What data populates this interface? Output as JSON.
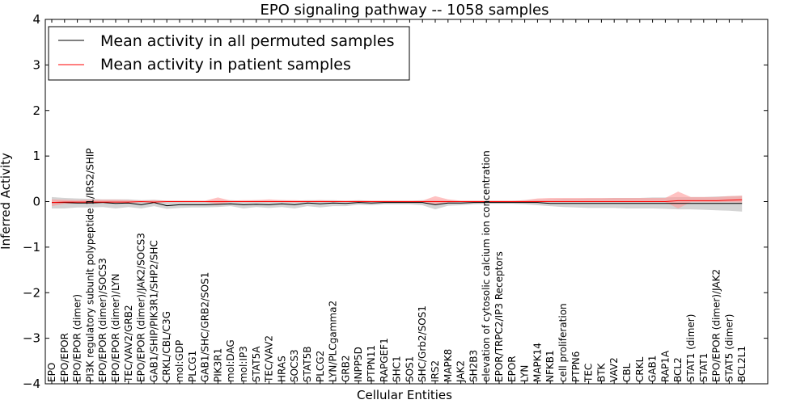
{
  "chart_data": {
    "type": "line",
    "title": "EPO signaling pathway -- 1058 samples",
    "xlabel": "Cellular Entities",
    "ylabel": "Inferred Activity",
    "ylim": [
      -4,
      4
    ],
    "yticks": [
      -4,
      -3,
      -2,
      -1,
      0,
      1,
      2,
      3,
      4
    ],
    "ytick_labels": [
      "−4",
      "−3",
      "−2",
      "−1",
      "0",
      "1",
      "2",
      "3",
      "4"
    ],
    "grid": false,
    "legend_position": "top-left",
    "categories": [
      "EPO",
      "EPO/EPOR",
      "EPO/EPOR (dimer)",
      "PI3K regulatory subunit polypeptide 1/IRS2/SHIP",
      "EPO/EPOR (dimer)/SOCS3",
      "EPO/EPOR (dimer)/LYN",
      "TEC/VAV2/GRB2",
      "EPO/EPOR (dimer)/JAK2/SOCS3",
      "GAB1/SHIP/PIK3R1/SHP2/SHC",
      "CRKL/CBL/C3G",
      "mol:GDP",
      "PLCG1",
      "GAB1/SHC/GRB2/SOS1",
      "PIK3R1",
      "mol:DAG",
      "mol:IP3",
      "STAT5A",
      "TEC/VAV2",
      "HRAS",
      "SOCS3",
      "STAT5B",
      "PLCG2",
      "LYN/PLCgamma2",
      "GRB2",
      "INPP5D",
      "PTPN11",
      "RAPGEF1",
      "SHC1",
      "SOS1",
      "SHC/Grb2/SOS1",
      "IRS2",
      "MAPK8",
      "JAK2",
      "SH2B3",
      "elevation of cytosolic calcium ion concentration",
      "EPOR/TRPC2/IP3 Receptors",
      "EPOR",
      "LYN",
      "MAPK14",
      "NFKB1",
      "cell proliferation",
      "PTPN6",
      "TEC",
      "BTK",
      "VAV2",
      "CBL",
      "CRKL",
      "GAB1",
      "RAP1A",
      "BCL2",
      "STAT1 (dimer)",
      "STAT1",
      "EPO/EPOR (dimer)/JAK2",
      "STAT5 (dimer)",
      "BCL2L1"
    ],
    "series": [
      {
        "name": "Mean activity in all permuted samples",
        "color": "#000000",
        "band_color": "#b0b0b0",
        "values": [
          -0.02,
          -0.02,
          -0.03,
          -0.03,
          -0.02,
          -0.04,
          -0.03,
          -0.07,
          -0.02,
          -0.09,
          -0.07,
          -0.07,
          -0.07,
          -0.06,
          -0.05,
          -0.07,
          -0.06,
          -0.07,
          -0.05,
          -0.07,
          -0.03,
          -0.05,
          -0.03,
          -0.04,
          -0.02,
          -0.03,
          -0.02,
          -0.02,
          -0.02,
          -0.02,
          -0.07,
          -0.03,
          -0.03,
          -0.02,
          -0.02,
          -0.02,
          -0.02,
          -0.02,
          -0.02,
          -0.04,
          -0.04,
          -0.04,
          -0.04,
          -0.04,
          -0.04,
          -0.04,
          -0.04,
          -0.04,
          -0.04,
          -0.04,
          -0.04,
          -0.04,
          -0.04,
          -0.04,
          -0.04
        ],
        "band_lower": [
          -0.15,
          -0.15,
          -0.13,
          -0.13,
          -0.12,
          -0.15,
          -0.12,
          -0.15,
          -0.1,
          -0.16,
          -0.14,
          -0.13,
          -0.13,
          -0.12,
          -0.1,
          -0.15,
          -0.12,
          -0.14,
          -0.12,
          -0.15,
          -0.1,
          -0.13,
          -0.1,
          -0.1,
          -0.07,
          -0.08,
          -0.06,
          -0.06,
          -0.06,
          -0.08,
          -0.17,
          -0.09,
          -0.08,
          -0.06,
          -0.05,
          -0.05,
          -0.05,
          -0.06,
          -0.08,
          -0.1,
          -0.12,
          -0.13,
          -0.14,
          -0.14,
          -0.14,
          -0.15,
          -0.15,
          -0.15,
          -0.16,
          -0.17,
          -0.17,
          -0.18,
          -0.19,
          -0.2,
          -0.22
        ],
        "band_upper": [
          0.1,
          0.08,
          0.07,
          0.06,
          0.05,
          0.05,
          0.05,
          0.03,
          0.04,
          0.02,
          0.02,
          0.02,
          0.02,
          0.03,
          0.03,
          0.02,
          0.03,
          0.02,
          0.03,
          0.02,
          0.03,
          0.03,
          0.03,
          0.02,
          0.03,
          0.02,
          0.02,
          0.02,
          0.02,
          0.03,
          0.03,
          0.03,
          0.02,
          0.02,
          0.02,
          0.02,
          0.02,
          0.03,
          0.04,
          0.05,
          0.06,
          0.06,
          0.07,
          0.07,
          0.08,
          0.08,
          0.08,
          0.09,
          0.09,
          0.1,
          0.1,
          0.1,
          0.11,
          0.12,
          0.13
        ]
      },
      {
        "name": "Mean activity in patient samples",
        "color": "#ff0000",
        "band_color": "#ff9a9a",
        "values": [
          -0.02,
          -0.01,
          -0.01,
          -0.01,
          -0.01,
          -0.01,
          -0.01,
          0.0,
          -0.01,
          0.0,
          0.0,
          0.0,
          0.0,
          0.0,
          0.0,
          0.0,
          0.0,
          0.0,
          0.0,
          0.0,
          0.0,
          0.0,
          0.0,
          0.0,
          0.0,
          0.0,
          0.0,
          0.0,
          0.0,
          0.0,
          0.0,
          0.0,
          0.0,
          0.0,
          0.0,
          0.0,
          0.0,
          0.0,
          0.0,
          0.0,
          0.0,
          0.0,
          0.0,
          0.0,
          0.0,
          0.0,
          0.0,
          0.0,
          0.0,
          0.02,
          0.02,
          0.02,
          0.02,
          0.03,
          0.04
        ],
        "band_lower": [
          -0.1,
          -0.05,
          -0.04,
          -0.03,
          -0.02,
          -0.02,
          -0.02,
          -0.01,
          -0.01,
          -0.01,
          -0.01,
          -0.01,
          -0.01,
          -0.06,
          -0.01,
          -0.01,
          -0.01,
          -0.01,
          -0.01,
          -0.02,
          -0.01,
          -0.01,
          -0.01,
          -0.01,
          -0.01,
          -0.01,
          -0.01,
          -0.01,
          -0.01,
          -0.01,
          -0.06,
          -0.02,
          -0.01,
          -0.01,
          -0.01,
          -0.01,
          -0.01,
          -0.01,
          -0.01,
          -0.01,
          -0.01,
          -0.01,
          -0.01,
          -0.01,
          -0.01,
          -0.01,
          -0.01,
          -0.01,
          -0.01,
          -0.15,
          -0.01,
          -0.01,
          -0.01,
          -0.01,
          -0.02
        ],
        "band_upper": [
          0.05,
          0.04,
          0.03,
          0.04,
          0.04,
          0.04,
          0.03,
          0.02,
          0.03,
          0.02,
          0.02,
          0.02,
          0.02,
          0.09,
          0.02,
          0.03,
          0.03,
          0.05,
          0.03,
          0.03,
          0.02,
          0.03,
          0.02,
          0.02,
          0.02,
          0.02,
          0.02,
          0.02,
          0.02,
          0.02,
          0.12,
          0.05,
          0.02,
          0.02,
          0.02,
          0.02,
          0.02,
          0.03,
          0.07,
          0.08,
          0.08,
          0.08,
          0.08,
          0.08,
          0.08,
          0.08,
          0.08,
          0.08,
          0.08,
          0.22,
          0.1,
          0.1,
          0.1,
          0.12,
          0.13
        ]
      }
    ]
  }
}
